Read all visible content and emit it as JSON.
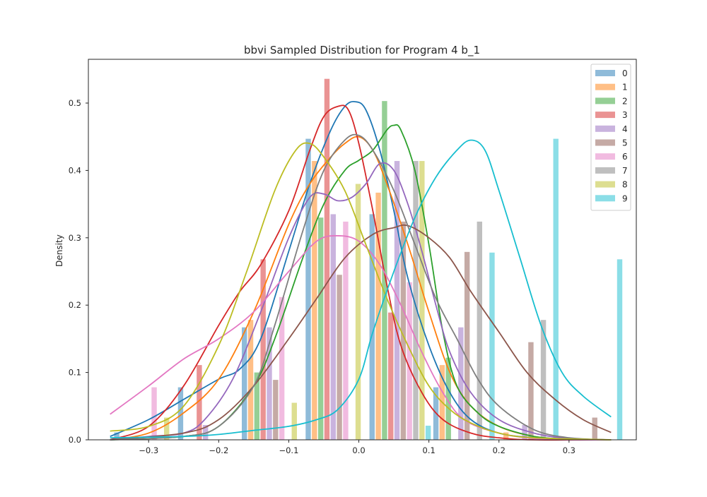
{
  "chart_data": {
    "type": "bar",
    "title": "bbvi Sampled Distribution for Program 4 b_1",
    "xlabel": "",
    "ylabel": "Density",
    "xlim": [
      -0.386,
      0.396
    ],
    "ylim": [
      0,
      0.565
    ],
    "grid": false,
    "legend_position": "top-right",
    "x_ticks": [
      {
        "value": -0.3,
        "label": "−0.3"
      },
      {
        "value": -0.2,
        "label": "−0.2"
      },
      {
        "value": -0.1,
        "label": "−0.1"
      },
      {
        "value": 0.0,
        "label": "0.0"
      },
      {
        "value": 0.1,
        "label": "0.1"
      },
      {
        "value": 0.2,
        "label": "0.2"
      },
      {
        "value": 0.3,
        "label": "0.3"
      }
    ],
    "y_ticks": [
      {
        "value": 0.0,
        "label": "0.0"
      },
      {
        "value": 0.1,
        "label": "0.1"
      },
      {
        "value": 0.2,
        "label": "0.2"
      },
      {
        "value": 0.3,
        "label": "0.3"
      },
      {
        "value": 0.4,
        "label": "0.4"
      },
      {
        "value": 0.5,
        "label": "0.5"
      }
    ],
    "bin_centers": [
      -0.3455,
      -0.2544,
      -0.1633,
      -0.0722,
      0.0189,
      0.11,
      0.2011,
      0.2922
    ],
    "bar_width": 0.0089,
    "series": [
      {
        "name": "0",
        "color": "#1f77b4",
        "values": [
          0.011,
          0.078,
          0.167,
          0.447,
          0.335,
          0.078,
          0.0,
          0.0
        ],
        "kde": [
          [
            -0.355,
            0.005
          ],
          [
            -0.3,
            0.03
          ],
          [
            -0.25,
            0.06
          ],
          [
            -0.2,
            0.09
          ],
          [
            -0.17,
            0.105
          ],
          [
            -0.14,
            0.15
          ],
          [
            -0.1,
            0.28
          ],
          [
            -0.07,
            0.38
          ],
          [
            -0.04,
            0.46
          ],
          [
            -0.02,
            0.495
          ],
          [
            -0.005,
            0.502
          ],
          [
            0.01,
            0.49
          ],
          [
            0.03,
            0.43
          ],
          [
            0.05,
            0.34
          ],
          [
            0.07,
            0.24
          ],
          [
            0.1,
            0.14
          ],
          [
            0.13,
            0.07
          ],
          [
            0.16,
            0.03
          ],
          [
            0.2,
            0.01
          ],
          [
            0.25,
            0.003
          ],
          [
            0.3,
            0.001
          ],
          [
            0.36,
            0.0
          ]
        ]
      },
      {
        "name": "1",
        "color": "#ff7f0e",
        "values": [
          0.0,
          0.0,
          0.178,
          0.414,
          0.367,
          0.111,
          0.011,
          0.0
        ],
        "kde": [
          [
            -0.355,
            0.0
          ],
          [
            -0.3,
            0.01
          ],
          [
            -0.25,
            0.04
          ],
          [
            -0.2,
            0.09
          ],
          [
            -0.15,
            0.19
          ],
          [
            -0.1,
            0.32
          ],
          [
            -0.07,
            0.38
          ],
          [
            -0.04,
            0.42
          ],
          [
            -0.02,
            0.44
          ],
          [
            0.0,
            0.45
          ],
          [
            0.02,
            0.43
          ],
          [
            0.04,
            0.38
          ],
          [
            0.07,
            0.29
          ],
          [
            0.1,
            0.19
          ],
          [
            0.13,
            0.1
          ],
          [
            0.16,
            0.05
          ],
          [
            0.2,
            0.02
          ],
          [
            0.25,
            0.005
          ],
          [
            0.3,
            0.001
          ],
          [
            0.36,
            0.0
          ]
        ]
      },
      {
        "name": "2",
        "color": "#2ca02c",
        "values": [
          0.0,
          0.0,
          0.1,
          0.33,
          0.503,
          0.122,
          0.0,
          0.0
        ],
        "kde": [
          [
            -0.355,
            0.0
          ],
          [
            -0.25,
            0.005
          ],
          [
            -0.2,
            0.02
          ],
          [
            -0.15,
            0.08
          ],
          [
            -0.12,
            0.15
          ],
          [
            -0.08,
            0.27
          ],
          [
            -0.05,
            0.35
          ],
          [
            -0.02,
            0.4
          ],
          [
            0.0,
            0.415
          ],
          [
            0.02,
            0.43
          ],
          [
            0.04,
            0.46
          ],
          [
            0.05,
            0.467
          ],
          [
            0.06,
            0.46
          ],
          [
            0.08,
            0.4
          ],
          [
            0.1,
            0.29
          ],
          [
            0.12,
            0.16
          ],
          [
            0.14,
            0.08
          ],
          [
            0.17,
            0.04
          ],
          [
            0.2,
            0.02
          ],
          [
            0.25,
            0.005
          ],
          [
            0.3,
            0.001
          ],
          [
            0.36,
            0.0
          ]
        ]
      },
      {
        "name": "3",
        "color": "#d62728",
        "values": [
          0.0,
          0.111,
          0.268,
          0.536,
          0.189,
          0.0,
          0.0,
          0.0
        ],
        "kde": [
          [
            -0.355,
            0.0
          ],
          [
            -0.3,
            0.02
          ],
          [
            -0.25,
            0.08
          ],
          [
            -0.2,
            0.17
          ],
          [
            -0.17,
            0.22
          ],
          [
            -0.14,
            0.26
          ],
          [
            -0.1,
            0.34
          ],
          [
            -0.07,
            0.43
          ],
          [
            -0.05,
            0.48
          ],
          [
            -0.03,
            0.495
          ],
          [
            -0.015,
            0.49
          ],
          [
            0.0,
            0.44
          ],
          [
            0.02,
            0.34
          ],
          [
            0.04,
            0.23
          ],
          [
            0.06,
            0.14
          ],
          [
            0.09,
            0.07
          ],
          [
            0.12,
            0.03
          ],
          [
            0.16,
            0.01
          ],
          [
            0.2,
            0.003
          ],
          [
            0.25,
            0.0
          ],
          [
            0.36,
            0.0
          ]
        ]
      },
      {
        "name": "4",
        "color": "#9467bd",
        "values": [
          0.0,
          0.022,
          0.167,
          0.335,
          0.414,
          0.167,
          0.022,
          0.0
        ],
        "kde": [
          [
            -0.355,
            0.0
          ],
          [
            -0.3,
            0.005
          ],
          [
            -0.25,
            0.01
          ],
          [
            -0.22,
            0.03
          ],
          [
            -0.18,
            0.09
          ],
          [
            -0.14,
            0.19
          ],
          [
            -0.1,
            0.3
          ],
          [
            -0.07,
            0.36
          ],
          [
            -0.05,
            0.365
          ],
          [
            -0.03,
            0.355
          ],
          [
            -0.01,
            0.36
          ],
          [
            0.01,
            0.38
          ],
          [
            0.03,
            0.41
          ],
          [
            0.05,
            0.4
          ],
          [
            0.07,
            0.35
          ],
          [
            0.09,
            0.28
          ],
          [
            0.11,
            0.2
          ],
          [
            0.13,
            0.13
          ],
          [
            0.16,
            0.07
          ],
          [
            0.2,
            0.03
          ],
          [
            0.25,
            0.01
          ],
          [
            0.3,
            0.002
          ],
          [
            0.36,
            0.0
          ]
        ]
      },
      {
        "name": "5",
        "color": "#8c564b",
        "values": [
          0.0,
          0.0,
          0.089,
          0.245,
          0.324,
          0.279,
          0.145,
          0.033
        ],
        "kde": [
          [
            -0.355,
            0.0
          ],
          [
            -0.25,
            0.01
          ],
          [
            -0.2,
            0.03
          ],
          [
            -0.15,
            0.08
          ],
          [
            -0.1,
            0.15
          ],
          [
            -0.06,
            0.21
          ],
          [
            -0.02,
            0.27
          ],
          [
            0.02,
            0.305
          ],
          [
            0.05,
            0.315
          ],
          [
            0.07,
            0.318
          ],
          [
            0.1,
            0.3
          ],
          [
            0.13,
            0.27
          ],
          [
            0.16,
            0.22
          ],
          [
            0.2,
            0.16
          ],
          [
            0.24,
            0.1
          ],
          [
            0.28,
            0.06
          ],
          [
            0.32,
            0.03
          ],
          [
            0.36,
            0.011
          ]
        ]
      },
      {
        "name": "6",
        "color": "#e377c2",
        "values": [
          0.078,
          0.0,
          0.212,
          0.324,
          0.234,
          0.0,
          0.0,
          0.0
        ],
        "kde": [
          [
            -0.355,
            0.038
          ],
          [
            -0.3,
            0.08
          ],
          [
            -0.25,
            0.12
          ],
          [
            -0.2,
            0.15
          ],
          [
            -0.15,
            0.19
          ],
          [
            -0.1,
            0.25
          ],
          [
            -0.06,
            0.295
          ],
          [
            -0.03,
            0.303
          ],
          [
            0.0,
            0.295
          ],
          [
            0.03,
            0.26
          ],
          [
            0.06,
            0.2
          ],
          [
            0.09,
            0.13
          ],
          [
            0.12,
            0.07
          ],
          [
            0.15,
            0.03
          ],
          [
            0.2,
            0.01
          ],
          [
            0.25,
            0.002
          ],
          [
            0.3,
            0.0
          ],
          [
            0.36,
            0.0
          ]
        ]
      },
      {
        "name": "7",
        "color": "#7f7f7f",
        "values": [
          0.0,
          0.0,
          0.0,
          0.0,
          0.414,
          0.324,
          0.178,
          0.0
        ],
        "kde": [
          [
            -0.355,
            0.0
          ],
          [
            -0.25,
            0.005
          ],
          [
            -0.2,
            0.02
          ],
          [
            -0.15,
            0.08
          ],
          [
            -0.12,
            0.17
          ],
          [
            -0.08,
            0.31
          ],
          [
            -0.05,
            0.4
          ],
          [
            -0.02,
            0.445
          ],
          [
            0.0,
            0.452
          ],
          [
            0.02,
            0.43
          ],
          [
            0.05,
            0.37
          ],
          [
            0.08,
            0.29
          ],
          [
            0.11,
            0.21
          ],
          [
            0.14,
            0.15
          ],
          [
            0.17,
            0.09
          ],
          [
            0.2,
            0.05
          ],
          [
            0.25,
            0.015
          ],
          [
            0.3,
            0.003
          ],
          [
            0.36,
            0.0
          ]
        ]
      },
      {
        "name": "8",
        "color": "#bcbd22",
        "values": [
          0.033,
          0.0,
          0.055,
          0.38,
          0.414,
          0.0,
          0.0,
          0.0
        ],
        "kde": [
          [
            -0.355,
            0.013
          ],
          [
            -0.3,
            0.02
          ],
          [
            -0.25,
            0.05
          ],
          [
            -0.2,
            0.14
          ],
          [
            -0.16,
            0.25
          ],
          [
            -0.12,
            0.37
          ],
          [
            -0.09,
            0.43
          ],
          [
            -0.07,
            0.44
          ],
          [
            -0.05,
            0.42
          ],
          [
            -0.02,
            0.37
          ],
          [
            0.01,
            0.29
          ],
          [
            0.04,
            0.21
          ],
          [
            0.07,
            0.14
          ],
          [
            0.1,
            0.08
          ],
          [
            0.13,
            0.045
          ],
          [
            0.16,
            0.025
          ],
          [
            0.2,
            0.01
          ],
          [
            0.25,
            0.003
          ],
          [
            0.36,
            0.0
          ]
        ]
      },
      {
        "name": "9",
        "color": "#17becf",
        "values": [
          0.0,
          0.0,
          0.0,
          0.0,
          0.021,
          0.278,
          0.447,
          0.268
        ],
        "kde": [
          [
            -0.355,
            0.003
          ],
          [
            -0.25,
            0.005
          ],
          [
            -0.2,
            0.008
          ],
          [
            -0.15,
            0.014
          ],
          [
            -0.1,
            0.02
          ],
          [
            -0.06,
            0.03
          ],
          [
            -0.03,
            0.045
          ],
          [
            0.0,
            0.09
          ],
          [
            0.02,
            0.16
          ],
          [
            0.05,
            0.25
          ],
          [
            0.08,
            0.33
          ],
          [
            0.11,
            0.39
          ],
          [
            0.14,
            0.43
          ],
          [
            0.16,
            0.445
          ],
          [
            0.18,
            0.43
          ],
          [
            0.2,
            0.37
          ],
          [
            0.23,
            0.27
          ],
          [
            0.26,
            0.17
          ],
          [
            0.29,
            0.1
          ],
          [
            0.32,
            0.065
          ],
          [
            0.36,
            0.034
          ]
        ]
      }
    ]
  }
}
